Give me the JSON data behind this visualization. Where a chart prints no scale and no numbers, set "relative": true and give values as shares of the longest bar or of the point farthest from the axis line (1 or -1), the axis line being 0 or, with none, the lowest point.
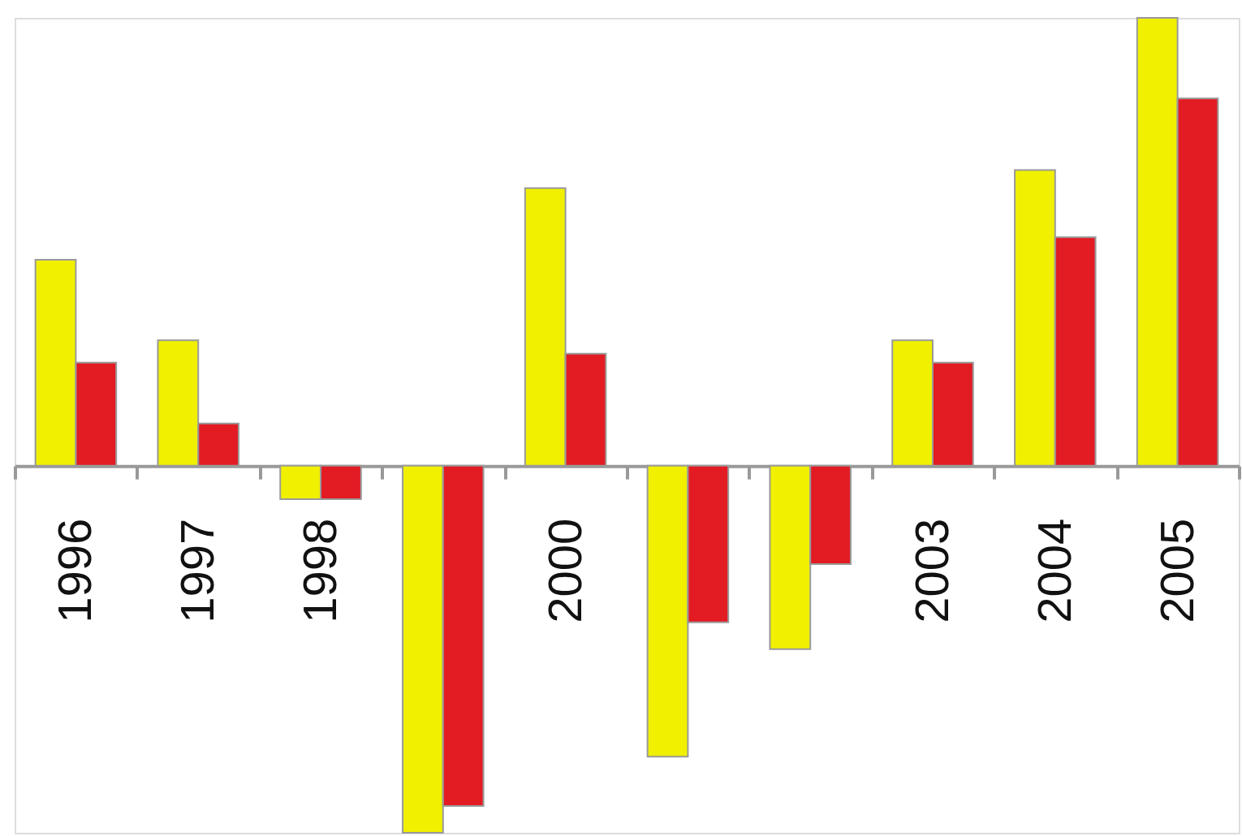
{
  "chart_data": {
    "type": "bar",
    "relative": true,
    "categories": [
      "1996",
      "1997",
      "1998",
      null,
      "2000",
      null,
      null,
      "2003",
      "2004",
      "2005"
    ],
    "series": [
      {
        "color": "#f0f000",
        "values": [
          0.46,
          0.28,
          -0.075,
          -0.82,
          0.62,
          -0.65,
          -0.41,
          0.28,
          0.66,
          1
        ]
      },
      {
        "color": "#e31b23",
        "values": [
          0.23,
          0.094,
          -0.075,
          -0.76,
          0.25,
          -0.35,
          -0.22,
          0.23,
          0.51,
          0.82
        ]
      }
    ]
  }
}
